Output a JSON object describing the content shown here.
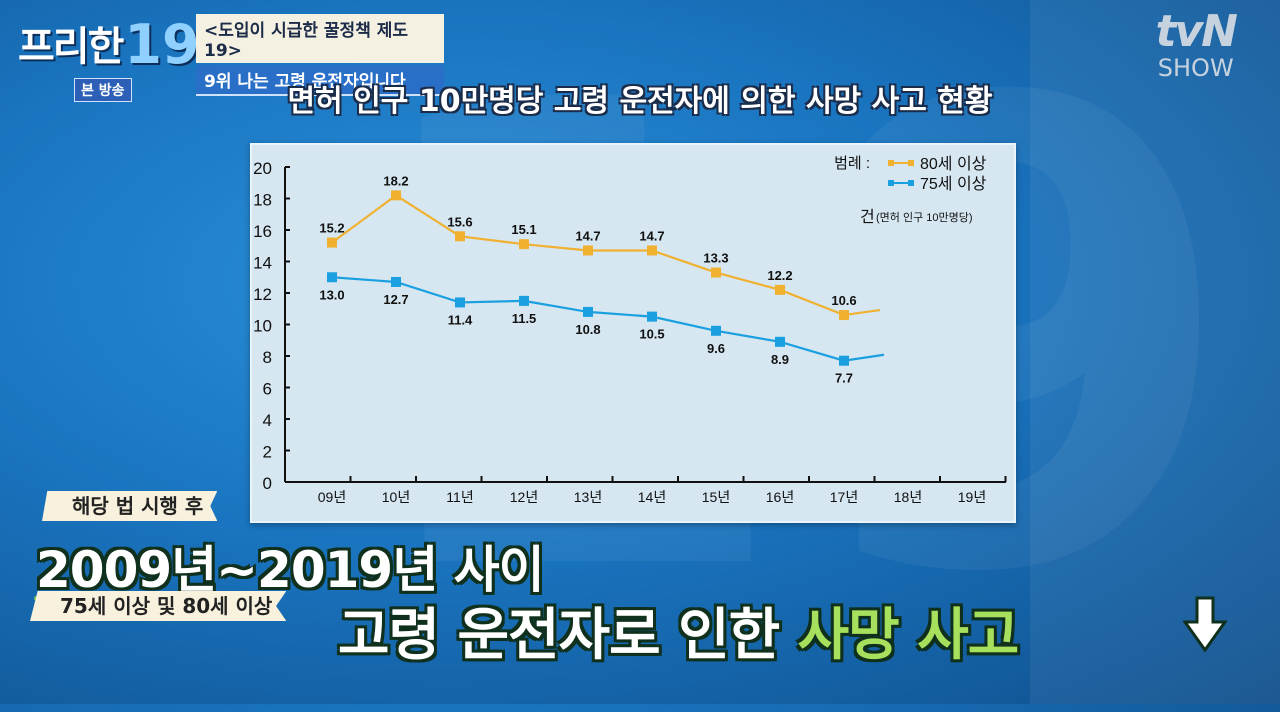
{
  "show": {
    "logo_text": "프리한",
    "logo_number": "19",
    "badge": "본 방송",
    "topic_line1": "<도입이 시급한 꿀정책 제도 19>",
    "topic_line2": "9위 나는 고령 운전자입니다"
  },
  "channel": {
    "name": "tvN",
    "sub": "SHOW"
  },
  "title": "면허 인구 10만명당 고령 운전자에 의한 사망 사고 현황",
  "captions": {
    "tag1": "해당 법 시행 후",
    "headline1": "2009년~2019년 사이",
    "tag2": "75세 이상 및 80세 이상",
    "headline2_white": "고령 운전자로 인한 ",
    "headline2_green": "사망 사고",
    "arrow_icon": "down-arrow-icon"
  },
  "colors": {
    "series_80": "#f0b030",
    "series_75": "#1aa0e0",
    "highlight_green": "#a7e05c"
  },
  "chart_data": {
    "type": "line",
    "title": "면허 인구 10만명당 고령 운전자에 의한 사망 사고 현황",
    "categories": [
      "09년",
      "10년",
      "11년",
      "12년",
      "13년",
      "14년",
      "15년",
      "16년",
      "17년",
      "18년",
      "19년"
    ],
    "series": [
      {
        "name": "80세 이상",
        "color": "#f0b030",
        "values": [
          15.2,
          18.2,
          15.6,
          15.1,
          14.7,
          14.7,
          13.3,
          12.2,
          10.6,
          null,
          null
        ],
        "labels": [
          "15.2",
          "18.2",
          "15.6",
          "15.1",
          "14.7",
          "14.7",
          "13.3",
          "12.2",
          "10.6"
        ]
      },
      {
        "name": "75세 이상",
        "color": "#1aa0e0",
        "values": [
          13.0,
          12.7,
          11.4,
          11.5,
          10.8,
          10.5,
          9.6,
          8.9,
          7.7,
          null,
          null
        ],
        "labels": [
          "13.0",
          "12.7",
          "11.4",
          "11.5",
          "10.8",
          "10.5",
          "9.6",
          "8.9",
          "7.7"
        ]
      }
    ],
    "legend_title": "범례 :",
    "unit_label": "건",
    "unit_note": "(면허 인구 10만명당)",
    "xlabel": "",
    "ylabel": "건",
    "yticks": [
      "0",
      "2",
      "4",
      "6",
      "8",
      "10",
      "12",
      "14",
      "16",
      "18",
      "20"
    ],
    "ylim": [
      0,
      20
    ],
    "grid": false,
    "legend_position": "top-right"
  }
}
